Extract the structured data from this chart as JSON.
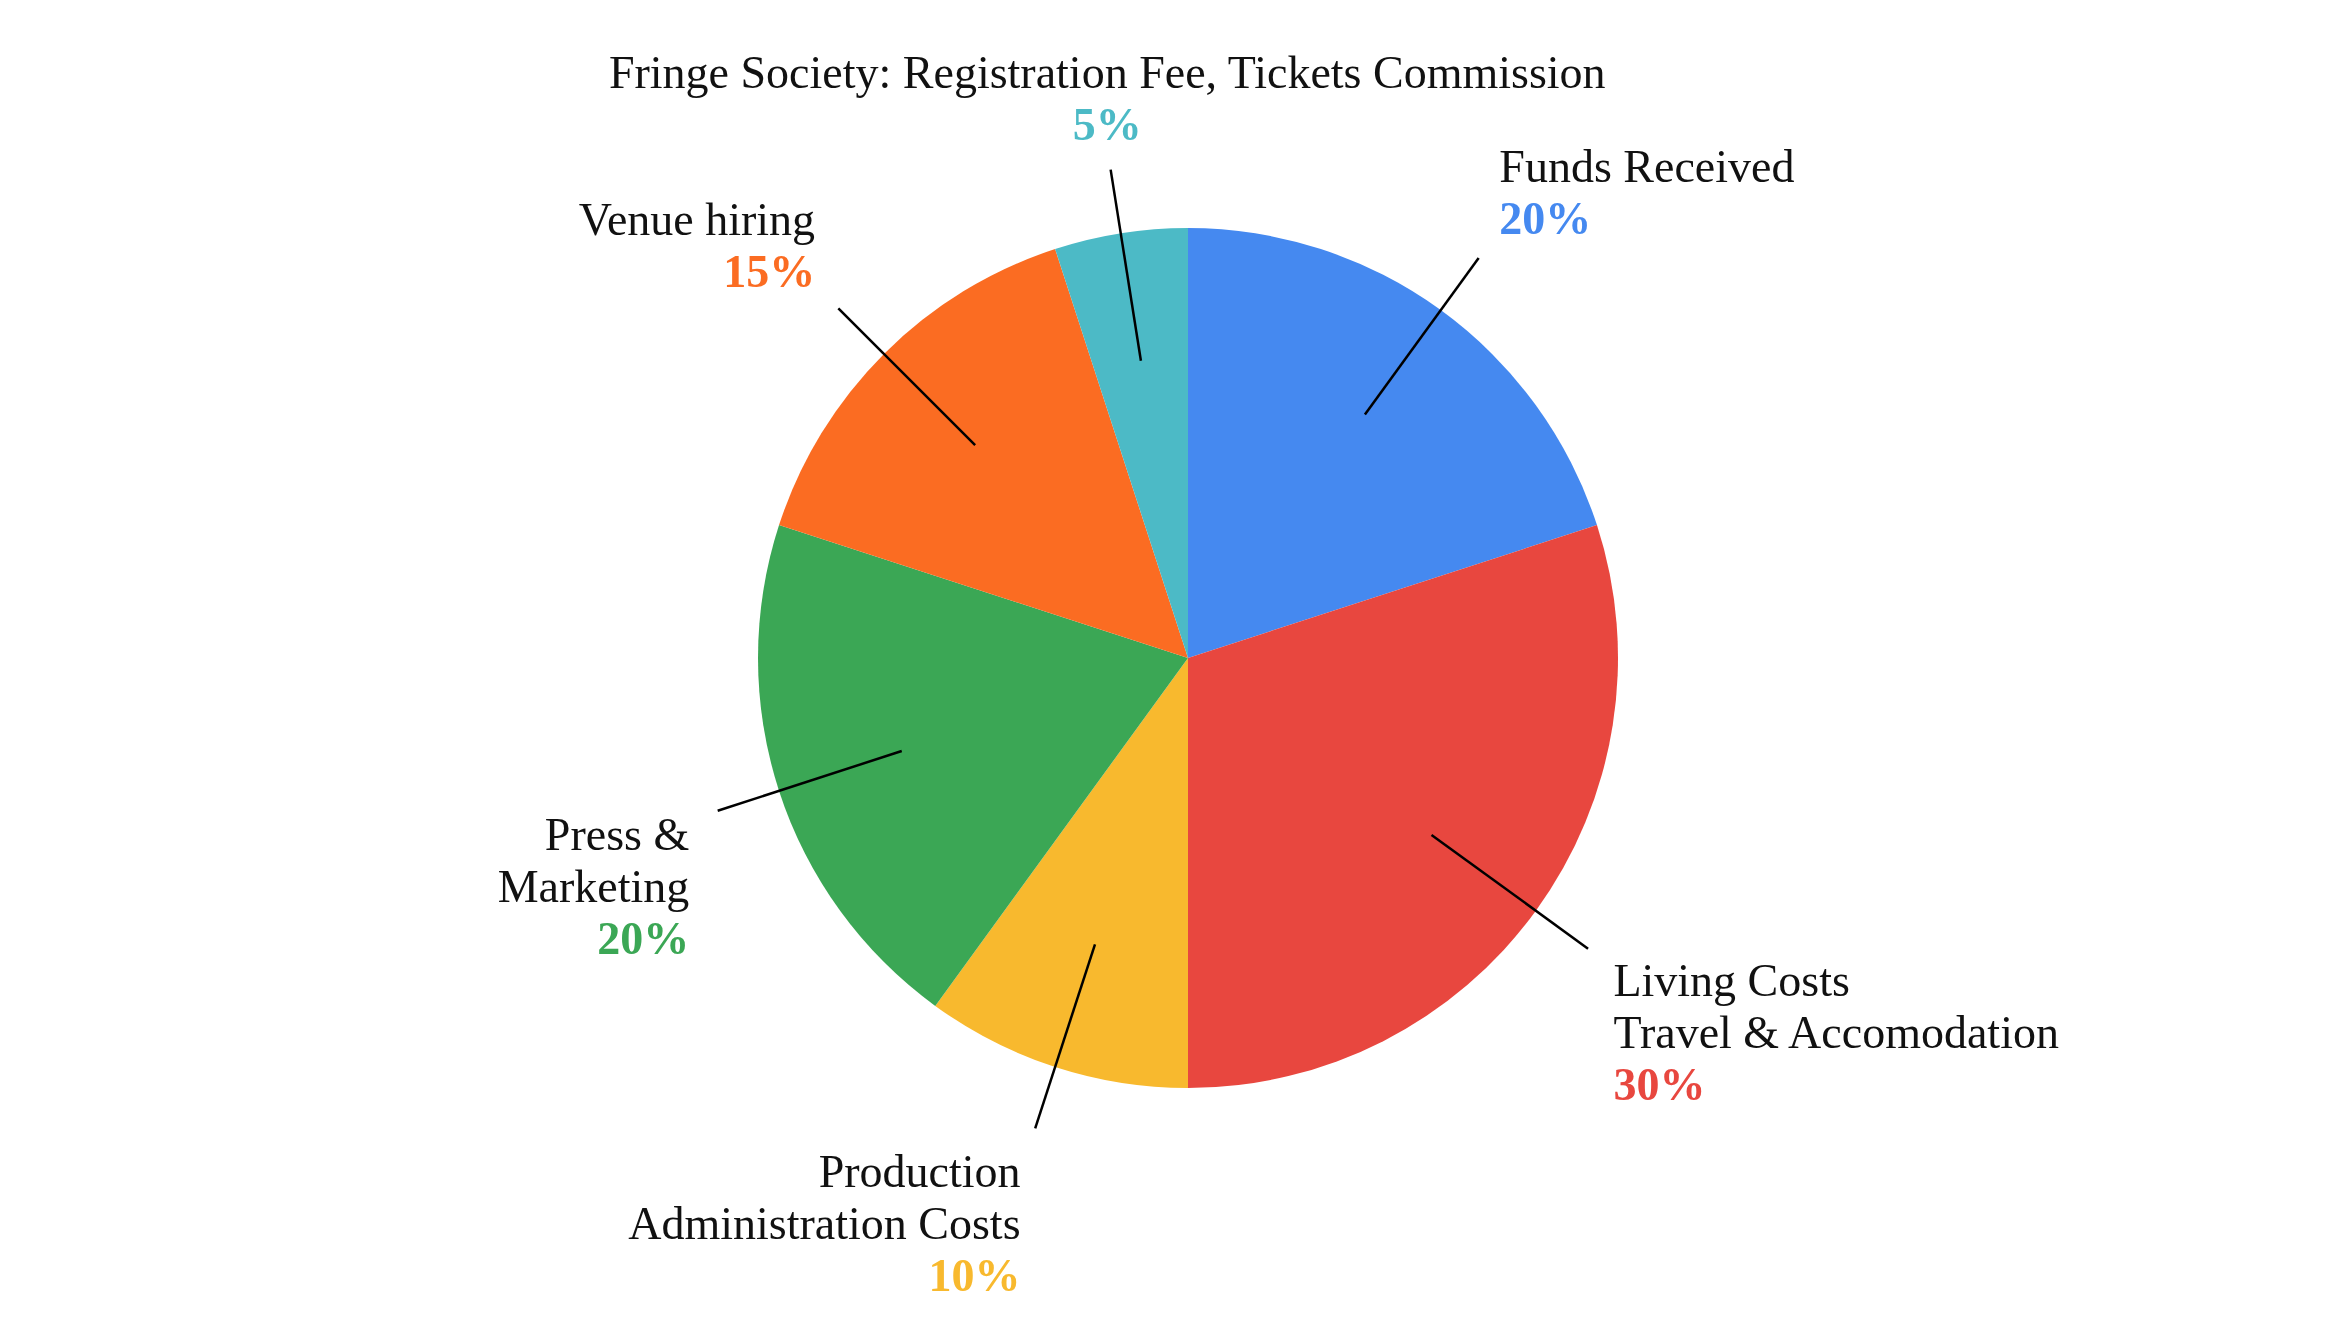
{
  "chart_data": {
    "type": "pie",
    "categories": [
      "Funds Received",
      "Living Costs\nTravel & Accomodation",
      "Production\nAdministration Costs",
      "Press &\nMarketing",
      "Venue hiring",
      "Fringe Society: Registration Fee, Tickets Commission"
    ],
    "values": [
      20,
      30,
      10,
      20,
      15,
      5
    ],
    "value_labels": [
      "20%",
      "30%",
      "10%",
      "20%",
      "15%",
      "5%"
    ],
    "colors": [
      "#4589f0",
      "#e8473f",
      "#f8b92e",
      "#3ba755",
      "#fb6c22",
      "#4cbac6"
    ]
  }
}
